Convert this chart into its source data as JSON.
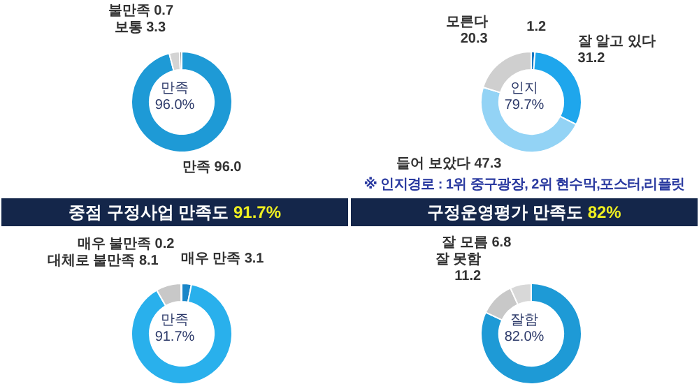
{
  "chart_data": [
    {
      "type": "donut",
      "categories": [
        "만족",
        "보통",
        "불만족"
      ],
      "values": [
        96.0,
        3.3,
        0.7
      ],
      "value_labels": [
        "96.0",
        "3.3",
        "0.7"
      ],
      "colors": [
        "#1e9ad6",
        "#d4d4d4",
        "#9a9a9a"
      ],
      "annotations": [
        "만족 96.0%"
      ],
      "legend": false
    },
    {
      "type": "donut",
      "categories": [
        null,
        "잘 알고 있다",
        "들어 보았다",
        "모른다"
      ],
      "values": [
        1.2,
        31.2,
        47.3,
        20.3
      ],
      "value_labels": [
        "1.2",
        "31.2",
        "47.3",
        "20.3"
      ],
      "colors": [
        "#1577c2",
        "#1ea6ec",
        "#93d3f5",
        "#cfcfcf"
      ],
      "annotations": [
        "인지 79.7%",
        "※ 인지경로 : 1위 중구광장, 2위 현수막,포스터,리플릿"
      ],
      "legend": false
    },
    {
      "type": "donut",
      "title": "중점 구정사업 만족도 91.7%",
      "categories": [
        "매우 만족",
        null,
        "대체로 불만족",
        "매우 불만족"
      ],
      "values": [
        3.1,
        88.6,
        8.1,
        0.2
      ],
      "value_labels": [
        "3.1",
        null,
        "8.1",
        "0.2"
      ],
      "colors": [
        "#1a86c8",
        "#29b0ec",
        "#c8c8c8",
        "#8a8a8a"
      ],
      "annotations": [
        "만족 91.7%"
      ],
      "legend": false
    },
    {
      "type": "donut",
      "title": "구정운영평가 만족도 82%",
      "categories": [
        null,
        "잘 못함",
        "잘 모름"
      ],
      "values": [
        82.0,
        11.2,
        6.8
      ],
      "value_labels": [
        null,
        "11.2",
        "6.8"
      ],
      "colors": [
        "#1e9ad6",
        "#c8c8c8",
        "#d8d8d8"
      ],
      "annotations": [
        "잘함 82.0%"
      ],
      "legend": false
    }
  ]
}
